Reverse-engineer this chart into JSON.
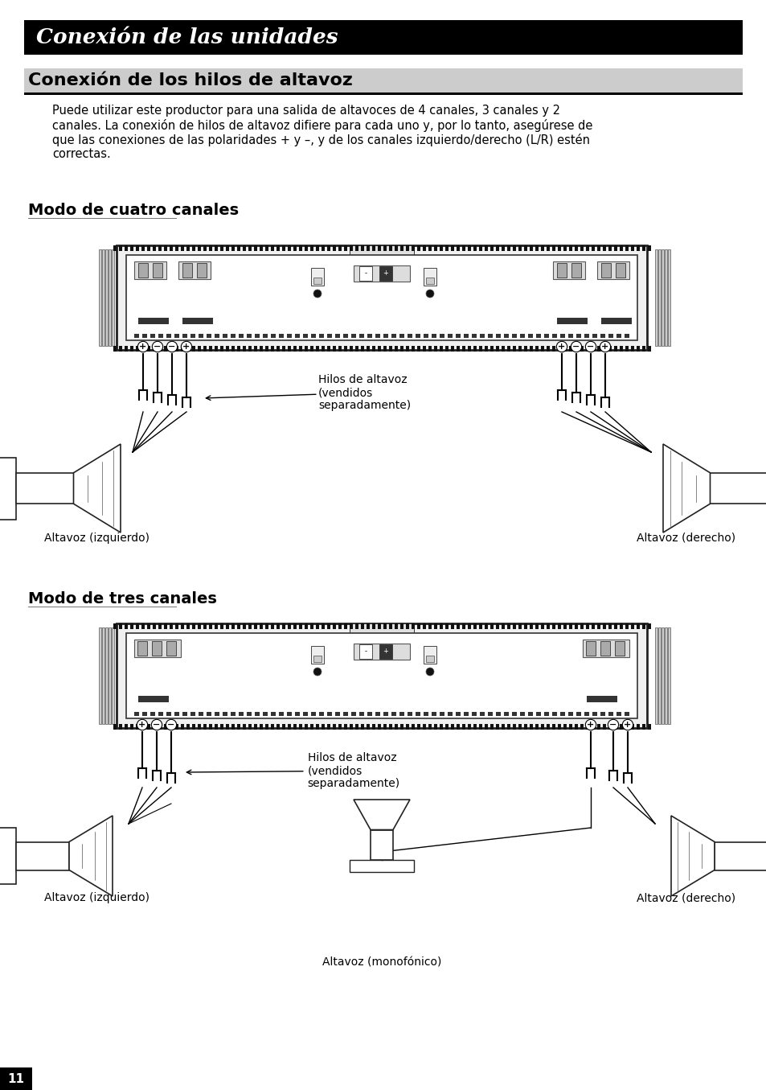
{
  "page_bg": "#ffffff",
  "header_bg": "#000000",
  "header_text": "Conexión de las unidades",
  "header_text_color": "#ffffff",
  "section1_title": "Conexión de los hilos de altavoz",
  "body_text_line1": "Puede utilizar este productor para una salida de altavoces de 4 canales, 3 canales y 2",
  "body_text_line2": "canales. La conexión de hilos de altavoz difiere para cada uno y, por lo tanto, asegúrese de",
  "body_text_line3": "que las conexiones de las polaridades + y –, y de los canales izquierdo/derecho (L/R) estén",
  "body_text_line4": "correctas.",
  "subsection1_title": "Modo de cuatro canales",
  "subsection2_title": "Modo de tres canales",
  "annotation_four": "Hilos de altavoz\n(vendidos\nseparadamente)",
  "annotation_three": "Hilos de altavoz\n(vendidos\nseparadamente)",
  "label_left_four": "Altavoz (izquierdo)",
  "label_right_four": "Altavoz (derecho)",
  "label_left_three": "Altavoz (izquierdo)",
  "label_right_three": "Altavoz (derecho)",
  "label_mono_three": "Altavoz (monofónico)",
  "page_number": "11"
}
